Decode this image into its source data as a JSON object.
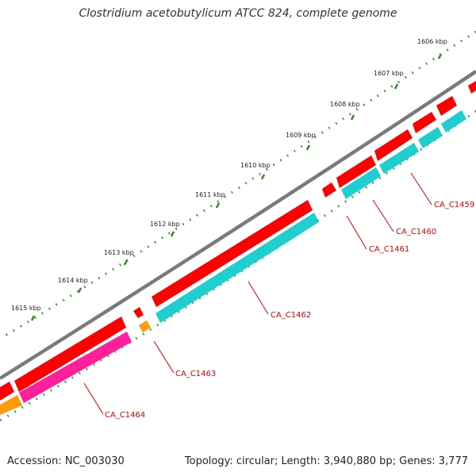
{
  "title": "Clostridium acetobutylicum ATCC 824, complete genome",
  "footer": {
    "accession": "Accession: NC_003030",
    "stats": "Topology: circular; Length: 3,940,880 bp; Genes: 3,777"
  },
  "colors": {
    "backbone": "#7a7a7a",
    "tick": "#2e8b1f",
    "cds": "#ff0000",
    "cds_dark": "#c80000",
    "feature_cyan": "#1fcfcf",
    "feature_pink": "#ff1f9a",
    "feature_orange": "#ff9a0a",
    "label": "#dd0000"
  },
  "ticks": [
    "1606 kbp",
    "1607 kbp",
    "1608 kbp",
    "1609 kbp",
    "1610 kbp",
    "1611 kbp",
    "1612 kbp",
    "1613 kbp",
    "1614 kbp",
    "1615 kbp"
  ],
  "genes": [
    "CA_C1459",
    "CA_C1460",
    "CA_C1461",
    "CA_C1462",
    "CA_C1463",
    "CA_C1464"
  ]
}
